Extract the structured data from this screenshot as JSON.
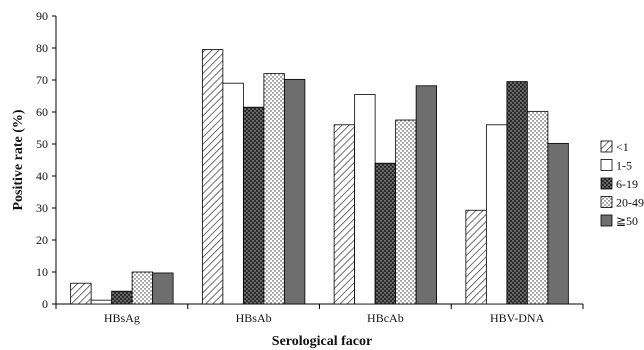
{
  "chart_data": {
    "type": "bar",
    "title": "",
    "xlabel": "Serological facor",
    "ylabel": "Positive rate (%)",
    "ylim": [
      0,
      90
    ],
    "yticks": [
      0,
      10,
      20,
      30,
      40,
      50,
      60,
      70,
      80,
      90
    ],
    "categories": [
      "HBsAg",
      "HBsAb",
      "HBcAb",
      "HBV-DNA"
    ],
    "series": [
      {
        "name": "<1",
        "pattern": "diagonal-hatch",
        "values": [
          6.5,
          79.5,
          56,
          29.3
        ]
      },
      {
        "name": "1-5",
        "pattern": "white",
        "values": [
          1.2,
          69,
          65.5,
          56
        ]
      },
      {
        "name": "6-19",
        "pattern": "dark-dotted",
        "values": [
          4,
          61.5,
          44,
          69.5
        ]
      },
      {
        "name": "20-49",
        "pattern": "light-dotted",
        "values": [
          10,
          72,
          57.5,
          60.2
        ]
      },
      {
        "name": "≧50",
        "pattern": "solid-gray",
        "values": [
          9.7,
          70.2,
          68.2,
          50.2
        ]
      }
    ],
    "grid": false,
    "legend_position": "right"
  }
}
